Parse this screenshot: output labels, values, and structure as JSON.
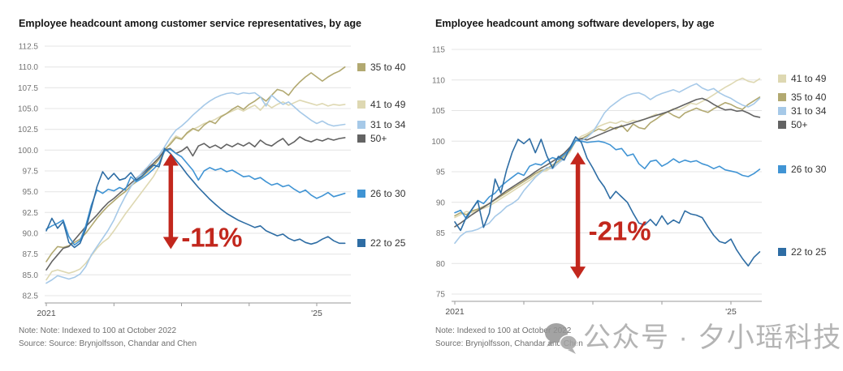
{
  "watermark": {
    "text": "公众号 · 夕小瑶科技说",
    "icon": "wechat-bubbles-icon",
    "color": "#b4b4b4"
  },
  "chart_data": [
    {
      "type": "line",
      "title": "Employee headcount among customer service representatives, by age",
      "note": "Note: Note: Indexed to 100 at October 2022",
      "source": "Source: Source: Brynjolfsson, Chandar and Chen",
      "x_unit": "month",
      "x_range": [
        "2021-01",
        "2025-06"
      ],
      "x_ticks": [
        {
          "label": "2021",
          "month_index": 0
        },
        {
          "label": "",
          "month_index": 12
        },
        {
          "label": "",
          "month_index": 24
        },
        {
          "label": "",
          "month_index": 36
        },
        {
          "label": "'25",
          "month_index": 48
        }
      ],
      "ylim": [
        82.5,
        112.5
      ],
      "ytick_labels": [
        "112.5",
        "110.0",
        "107.5",
        "105.0",
        "102.5",
        "100.0",
        "97.5",
        "95.0",
        "92.5",
        "90.0",
        "87.5",
        "85.0",
        "82.5"
      ],
      "grid": true,
      "legend_position": "right",
      "annotation": {
        "label": "-11%",
        "color": "#c2271d",
        "x_month": 22.1,
        "from_value": 99.6,
        "to_value": 88.1,
        "label_value": 88.4
      },
      "series": [
        {
          "name": "41 to 49",
          "color": "#ded8b2",
          "values": [
            84.4,
            85.4,
            85.6,
            85.4,
            85.2,
            85.4,
            85.7,
            86.4,
            87.3,
            88.2,
            88.9,
            89.4,
            90.3,
            91.3,
            92.3,
            93.2,
            94.1,
            95.0,
            95.9,
            96.8,
            98.0,
            99.9,
            100.9,
            101.7,
            101.4,
            102.0,
            102.5,
            102.8,
            103.2,
            103.4,
            103.7,
            104.1,
            104.4,
            104.7,
            105.0,
            104.7,
            105.1,
            105.4,
            104.8,
            105.6,
            105.1,
            105.5,
            105.8,
            105.4,
            105.7,
            106.0,
            105.8,
            105.6,
            105.4,
            105.6,
            105.3,
            105.5,
            105.4,
            105.5
          ]
        },
        {
          "name": "35 to 40",
          "color": "#b2a971",
          "values": [
            86.6,
            87.6,
            88.4,
            88.3,
            88.5,
            88.9,
            89.3,
            90.0,
            90.9,
            91.8,
            92.6,
            93.3,
            93.9,
            94.5,
            95.0,
            95.7,
            96.2,
            96.8,
            97.4,
            98.1,
            98.9,
            100.1,
            100.7,
            101.5,
            101.3,
            102.1,
            102.6,
            102.3,
            103.0,
            103.5,
            103.2,
            104.0,
            104.4,
            104.9,
            105.3,
            104.9,
            105.5,
            105.9,
            106.4,
            105.9,
            106.6,
            107.3,
            107.1,
            106.6,
            107.5,
            108.2,
            108.8,
            109.3,
            108.8,
            108.3,
            108.8,
            109.2,
            109.5,
            110.0
          ]
        },
        {
          "name": "50+",
          "color": "#636363",
          "values": [
            85.6,
            86.6,
            87.4,
            88.2,
            88.4,
            89.2,
            90.0,
            90.8,
            91.5,
            92.2,
            93.0,
            93.7,
            94.2,
            94.8,
            95.4,
            96.0,
            96.6,
            97.2,
            97.8,
            98.4,
            99.1,
            100.0,
            100.2,
            99.6,
            99.9,
            100.4,
            99.3,
            100.5,
            100.8,
            100.3,
            100.6,
            100.2,
            100.7,
            100.4,
            100.8,
            100.5,
            100.9,
            100.4,
            101.2,
            100.7,
            100.5,
            101.0,
            101.4,
            100.6,
            101.0,
            101.6,
            101.2,
            101.0,
            101.3,
            101.1,
            101.4,
            101.2,
            101.4,
            101.5
          ]
        },
        {
          "name": "31 to 34",
          "color": "#a6c9e8",
          "values": [
            84.0,
            84.4,
            84.9,
            84.7,
            84.5,
            84.7,
            85.1,
            86.0,
            87.4,
            88.4,
            89.4,
            90.4,
            91.6,
            93.1,
            94.4,
            95.6,
            96.5,
            97.3,
            98.0,
            98.8,
            99.4,
            100.4,
            101.5,
            102.4,
            102.9,
            103.5,
            104.2,
            104.8,
            105.4,
            105.9,
            106.3,
            106.6,
            106.8,
            106.9,
            106.7,
            106.9,
            106.8,
            106.9,
            106.4,
            105.3,
            106.6,
            106.0,
            105.5,
            105.8,
            105.2,
            104.6,
            104.1,
            103.6,
            103.2,
            103.5,
            103.1,
            102.9,
            103.0,
            103.1
          ]
        },
        {
          "name": "26 to 30",
          "color": "#4094d4",
          "values": [
            90.5,
            90.9,
            91.2,
            91.6,
            89.6,
            88.6,
            89.1,
            90.9,
            93.4,
            95.2,
            94.8,
            95.3,
            95.1,
            95.5,
            95.2,
            96.8,
            96.2,
            96.6,
            97.1,
            97.7,
            98.4,
            99.9,
            100.1,
            99.6,
            99.2,
            98.4,
            97.6,
            96.4,
            97.5,
            97.9,
            97.6,
            97.8,
            97.4,
            97.6,
            97.2,
            96.8,
            96.9,
            96.5,
            96.7,
            96.2,
            95.8,
            96.0,
            95.6,
            95.8,
            95.3,
            94.9,
            95.2,
            94.6,
            94.2,
            94.5,
            94.9,
            94.4,
            94.6,
            94.8
          ]
        },
        {
          "name": "22 to 25",
          "color": "#2e6da4",
          "values": [
            90.3,
            91.8,
            90.6,
            91.4,
            88.9,
            88.3,
            88.8,
            90.5,
            93.0,
            95.6,
            97.4,
            96.5,
            97.2,
            96.4,
            96.6,
            97.3,
            96.4,
            96.9,
            97.6,
            98.2,
            98.0,
            100.2,
            99.6,
            98.8,
            98.0,
            97.1,
            96.3,
            95.5,
            94.8,
            94.1,
            93.5,
            92.9,
            92.4,
            92.0,
            91.6,
            91.3,
            91.0,
            90.7,
            90.9,
            90.3,
            90.0,
            89.7,
            89.9,
            89.4,
            89.1,
            89.3,
            88.9,
            88.7,
            88.9,
            89.3,
            89.6,
            89.1,
            88.8,
            88.8
          ]
        }
      ]
    },
    {
      "type": "line",
      "title": "Employee headcount among software developers, by age",
      "note": "Note: Indexed to 100 at October 2022",
      "source": "Source: Brynjolfsson, Chandar and Chen",
      "x_unit": "month",
      "x_range": [
        "2021-01",
        "2025-06"
      ],
      "x_ticks": [
        {
          "label": "2021",
          "month_index": 0
        },
        {
          "label": "",
          "month_index": 12
        },
        {
          "label": "",
          "month_index": 24
        },
        {
          "label": "",
          "month_index": 36
        },
        {
          "label": "'25",
          "month_index": 48
        }
      ],
      "ylim": [
        75,
        115
      ],
      "ytick_labels": [
        "115",
        "110",
        "105",
        "100",
        "95",
        "90",
        "85",
        "80",
        "75"
      ],
      "grid": true,
      "legend_position": "right",
      "annotation": {
        "label": "-21%",
        "color": "#c2271d",
        "x_month": 21.4,
        "from_value": 98.2,
        "to_value": 77.5,
        "label_value": 83.8
      },
      "series": [
        {
          "name": "41 to 49",
          "color": "#ded8b2",
          "values": [
            87.5,
            88.0,
            88.5,
            88.3,
            88.8,
            89.0,
            89.4,
            90.0,
            90.6,
            91.2,
            91.8,
            92.4,
            93.0,
            93.6,
            94.3,
            95.0,
            95.2,
            95.8,
            96.4,
            97.2,
            98.2,
            100.1,
            100.8,
            101.2,
            101.8,
            102.4,
            102.8,
            103.1,
            102.9,
            103.3,
            103.0,
            103.4,
            103.2,
            103.6,
            104.0,
            104.4,
            104.2,
            104.8,
            105.3,
            105.1,
            105.6,
            106.2,
            106.0,
            106.5,
            107.0,
            107.6,
            108.2,
            108.8,
            109.3,
            109.9,
            110.3,
            109.8,
            109.6,
            110.2
          ]
        },
        {
          "name": "35 to 40",
          "color": "#b2a971",
          "values": [
            87.8,
            88.3,
            88.0,
            88.6,
            88.9,
            89.3,
            89.8,
            90.4,
            91.0,
            91.6,
            92.2,
            92.8,
            93.4,
            94.0,
            94.7,
            95.2,
            95.5,
            96.1,
            96.7,
            97.5,
            98.5,
            100.0,
            100.4,
            100.9,
            101.5,
            102.0,
            101.7,
            102.3,
            102.0,
            102.6,
            101.6,
            102.8,
            102.2,
            102.0,
            103.0,
            103.6,
            104.3,
            104.8,
            104.2,
            103.8,
            104.6,
            105.0,
            105.4,
            105.0,
            104.7,
            105.3,
            105.8,
            106.3,
            106.0,
            105.5,
            105.2,
            106.0,
            106.6,
            107.2
          ]
        },
        {
          "name": "50+",
          "color": "#636363",
          "values": [
            86.0,
            86.6,
            87.3,
            88.0,
            88.6,
            89.2,
            89.8,
            90.5,
            91.2,
            91.9,
            92.5,
            93.1,
            93.7,
            94.3,
            95.0,
            95.6,
            96.1,
            96.7,
            97.3,
            98.0,
            99.0,
            100.2,
            100.4,
            100.2,
            100.6,
            101.0,
            101.4,
            101.8,
            102.2,
            102.4,
            102.7,
            103.0,
            103.3,
            103.6,
            103.9,
            104.2,
            104.5,
            104.8,
            105.2,
            105.6,
            106.0,
            106.4,
            106.8,
            107.0,
            106.6,
            106.0,
            105.5,
            105.1,
            105.2,
            104.9,
            105.0,
            104.6,
            104.1,
            103.9
          ]
        },
        {
          "name": "31 to 34",
          "color": "#a6c9e8",
          "values": [
            83.3,
            84.5,
            85.2,
            85.3,
            85.6,
            86.1,
            86.6,
            87.7,
            88.4,
            89.3,
            89.8,
            90.5,
            91.9,
            93.0,
            94.1,
            94.9,
            95.7,
            95.5,
            96.4,
            97.1,
            98.8,
            100.2,
            100.1,
            100.6,
            101.5,
            103.0,
            104.6,
            105.6,
            106.3,
            107.0,
            107.5,
            107.8,
            107.9,
            107.5,
            106.8,
            107.4,
            107.8,
            108.1,
            108.4,
            108.0,
            108.5,
            109.0,
            109.4,
            108.7,
            108.3,
            108.6,
            107.9,
            107.4,
            107.0,
            106.4,
            105.9,
            105.6,
            106.1,
            107.0
          ]
        },
        {
          "name": "26 to 30",
          "color": "#4094d4",
          "values": [
            88.3,
            88.7,
            87.3,
            88.9,
            90.3,
            89.8,
            90.9,
            91.5,
            92.6,
            93.4,
            94.1,
            94.8,
            94.4,
            95.9,
            96.3,
            96.1,
            96.8,
            97.3,
            97.0,
            97.8,
            98.6,
            100.1,
            100.0,
            99.8,
            99.9,
            100.0,
            99.8,
            99.4,
            98.6,
            98.8,
            97.6,
            97.9,
            96.3,
            95.5,
            96.7,
            96.9,
            95.9,
            96.4,
            97.1,
            96.5,
            96.9,
            96.6,
            96.8,
            96.3,
            96.0,
            95.5,
            95.9,
            95.3,
            95.1,
            94.9,
            94.4,
            94.2,
            94.7,
            95.4
          ]
        },
        {
          "name": "22 to 25",
          "color": "#2e6da4",
          "values": [
            86.8,
            85.4,
            87.6,
            88.9,
            90.2,
            85.9,
            88.2,
            93.8,
            91.5,
            95.3,
            98.2,
            100.3,
            99.6,
            100.4,
            98.1,
            100.3,
            97.6,
            95.6,
            97.5,
            96.9,
            98.9,
            100.7,
            99.8,
            97.2,
            95.6,
            93.8,
            92.5,
            90.6,
            91.8,
            90.9,
            90.0,
            88.2,
            86.6,
            86.3,
            87.2,
            86.2,
            87.8,
            86.4,
            87.1,
            86.6,
            88.6,
            88.1,
            87.9,
            87.5,
            86.0,
            84.6,
            83.6,
            83.3,
            84.0,
            82.2,
            80.8,
            79.6,
            81.0,
            81.9
          ]
        }
      ]
    }
  ]
}
